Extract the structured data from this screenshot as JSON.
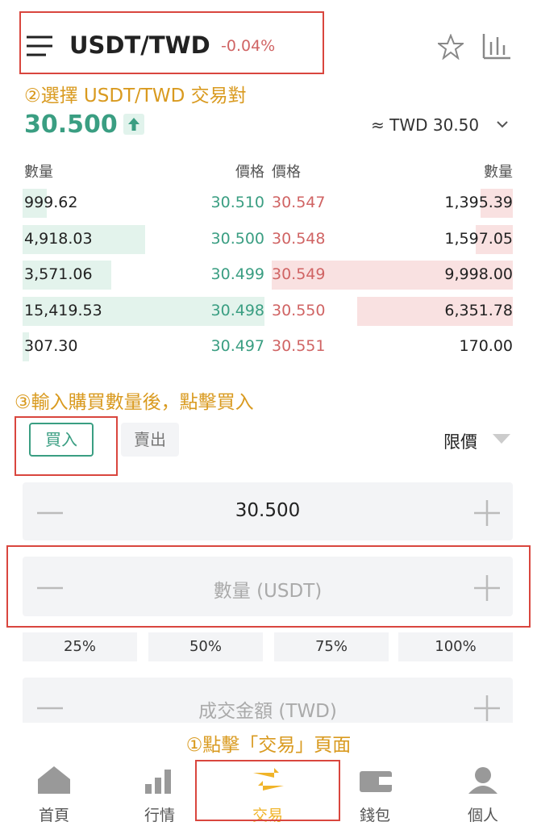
{
  "header": {
    "title": "USDT/TWD",
    "change": "-0.04%"
  },
  "annotations": [
    "②選擇 USDT/TWD 交易對",
    "③輸入購買數量後，點擊買入",
    "①點擊「交易」頁面"
  ],
  "price": {
    "last": "30.500",
    "reference": "≈ TWD 30.50"
  },
  "order_book": {
    "headers": [
      "數量",
      "價格",
      "價格",
      "數量"
    ],
    "rows": [
      [
        "999.62",
        "30.510",
        "30.547",
        "1,395.39"
      ],
      [
        "4,918.03",
        "30.500",
        "30.548",
        "1,597.05"
      ],
      [
        "3,571.06",
        "30.499",
        "30.549",
        "9,998.00"
      ],
      [
        "15,419.53",
        "30.498",
        "30.550",
        "6,351.78"
      ],
      [
        "307.30",
        "30.497",
        "30.551",
        "170.00"
      ]
    ]
  },
  "trade_form": {
    "tabs": [
      "買入",
      "賣出"
    ],
    "order_type": "限價",
    "price_input": "30.500",
    "amount_placeholder": "數量 (USDT)",
    "percentages": [
      "25%",
      "50%",
      "75%",
      "100%"
    ],
    "total_placeholder": "成交金額 (TWD)"
  },
  "nav": [
    "首頁",
    "行情",
    "交易",
    "錢包",
    "個人"
  ]
}
